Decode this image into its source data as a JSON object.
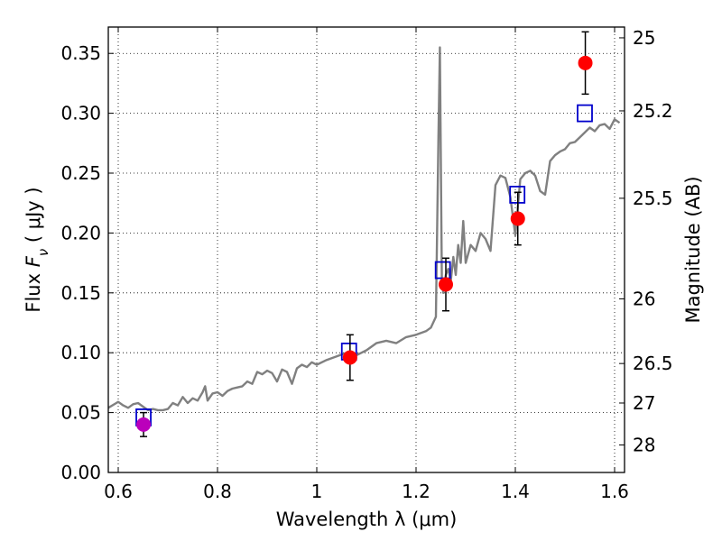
{
  "chart_data": {
    "type": "scatter",
    "xlabel": "Wavelength  λ (μm)",
    "ylabel": "Flux  F_ν  ( μJy )",
    "y2label": "Magnitude (AB)",
    "xlim": [
      0.58,
      1.62
    ],
    "ylim": [
      0.0,
      0.372
    ],
    "grid": true,
    "x_ticks": [
      {
        "value": 0.6,
        "label": "0.6"
      },
      {
        "value": 0.8,
        "label": "0.8"
      },
      {
        "value": 1.0,
        "label": "1"
      },
      {
        "value": 1.2,
        "label": "1.2"
      },
      {
        "value": 1.4,
        "label": "1.4"
      },
      {
        "value": 1.6,
        "label": "1.6"
      }
    ],
    "y_ticks": [
      {
        "value": 0.0,
        "label": "0.00"
      },
      {
        "value": 0.05,
        "label": "0.05"
      },
      {
        "value": 0.1,
        "label": "0.10"
      },
      {
        "value": 0.15,
        "label": "0.15"
      },
      {
        "value": 0.2,
        "label": "0.20"
      },
      {
        "value": 0.25,
        "label": "0.25"
      },
      {
        "value": 0.3,
        "label": "0.30"
      },
      {
        "value": 0.35,
        "label": "0.35"
      }
    ],
    "y2_ticks": [
      {
        "label": "25",
        "flux": 0.363
      },
      {
        "label": "25.2",
        "flux": 0.302
      },
      {
        "label": "25.5",
        "flux": 0.229
      },
      {
        "label": "26",
        "flux": 0.145
      },
      {
        "label": "26.5",
        "flux": 0.091
      },
      {
        "label": "27",
        "flux": 0.058
      },
      {
        "label": "28",
        "flux": 0.023
      }
    ],
    "series": [
      {
        "kind": "line",
        "color": "#808080",
        "x": [
          0.58,
          0.6,
          0.61,
          0.62,
          0.63,
          0.64,
          0.65,
          0.66,
          0.67,
          0.68,
          0.69,
          0.7,
          0.71,
          0.72,
          0.73,
          0.74,
          0.75,
          0.76,
          0.77,
          0.775,
          0.78,
          0.79,
          0.8,
          0.81,
          0.82,
          0.83,
          0.84,
          0.85,
          0.86,
          0.87,
          0.88,
          0.89,
          0.9,
          0.91,
          0.92,
          0.93,
          0.94,
          0.95,
          0.96,
          0.97,
          0.98,
          0.99,
          1.0,
          1.02,
          1.04,
          1.06,
          1.08,
          1.1,
          1.12,
          1.14,
          1.16,
          1.18,
          1.2,
          1.22,
          1.23,
          1.24,
          1.245,
          1.248,
          1.252,
          1.255,
          1.26,
          1.265,
          1.27,
          1.275,
          1.28,
          1.285,
          1.29,
          1.295,
          1.3,
          1.31,
          1.32,
          1.33,
          1.34,
          1.35,
          1.36,
          1.37,
          1.38,
          1.39,
          1.4,
          1.41,
          1.42,
          1.43,
          1.44,
          1.45,
          1.46,
          1.47,
          1.48,
          1.49,
          1.5,
          1.51,
          1.52,
          1.53,
          1.54,
          1.55,
          1.56,
          1.57,
          1.58,
          1.59,
          1.6,
          1.61
        ],
        "y": [
          0.054,
          0.059,
          0.056,
          0.054,
          0.057,
          0.058,
          0.055,
          0.052,
          0.053,
          0.052,
          0.052,
          0.053,
          0.058,
          0.056,
          0.063,
          0.058,
          0.062,
          0.06,
          0.067,
          0.072,
          0.06,
          0.066,
          0.067,
          0.064,
          0.068,
          0.07,
          0.071,
          0.072,
          0.076,
          0.074,
          0.084,
          0.082,
          0.085,
          0.083,
          0.076,
          0.086,
          0.084,
          0.074,
          0.087,
          0.09,
          0.088,
          0.092,
          0.09,
          0.094,
          0.097,
          0.1,
          0.098,
          0.102,
          0.108,
          0.11,
          0.108,
          0.113,
          0.115,
          0.118,
          0.121,
          0.13,
          0.28,
          0.355,
          0.16,
          0.15,
          0.165,
          0.17,
          0.16,
          0.18,
          0.165,
          0.19,
          0.175,
          0.21,
          0.175,
          0.19,
          0.185,
          0.2,
          0.195,
          0.185,
          0.24,
          0.248,
          0.246,
          0.23,
          0.198,
          0.245,
          0.25,
          0.252,
          0.248,
          0.235,
          0.232,
          0.26,
          0.265,
          0.268,
          0.27,
          0.275,
          0.276,
          0.28,
          0.284,
          0.288,
          0.285,
          0.29,
          0.291,
          0.287,
          0.295,
          0.292
        ]
      },
      {
        "kind": "model-box",
        "color": "#0000cc",
        "x": [
          0.651,
          1.065,
          1.254,
          1.404,
          1.54
        ],
        "y": [
          0.046,
          0.101,
          0.169,
          0.232,
          0.3
        ]
      },
      {
        "kind": "observed",
        "x": [
          0.651,
          1.067,
          1.26,
          1.405,
          1.541
        ],
        "y": [
          0.04,
          0.096,
          0.157,
          0.212,
          0.342
        ],
        "err": [
          0.01,
          0.019,
          0.022,
          0.022,
          0.026
        ],
        "colors": [
          "#bb00bb",
          "#ff0000",
          "#ff0000",
          "#ff0000",
          "#ff0000"
        ]
      }
    ]
  }
}
